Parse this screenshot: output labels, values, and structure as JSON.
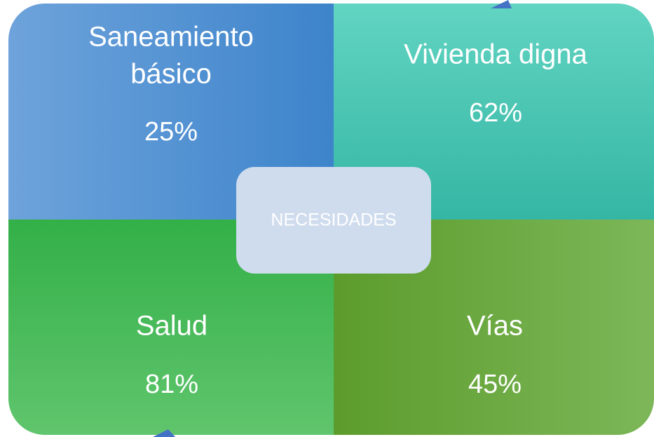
{
  "quadrants": [
    {
      "title": [
        "Saneamiento",
        "básico"
      ],
      "percent": "25%"
    },
    {
      "title": [
        "Vivienda digna"
      ],
      "percent": "62%"
    },
    {
      "title": [
        "Salud"
      ],
      "percent": "81%"
    },
    {
      "title": [
        "Vías"
      ],
      "percent": "45%"
    }
  ],
  "center": "NECESIDADES"
}
